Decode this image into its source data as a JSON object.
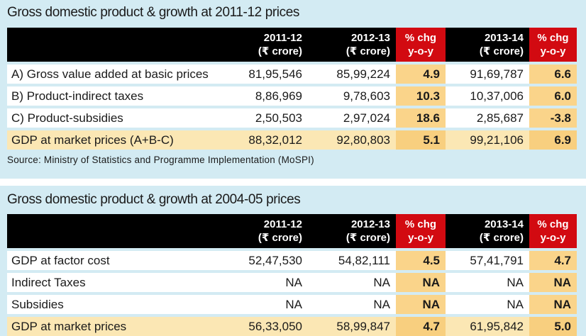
{
  "colors": {
    "background": "#d3ebf3",
    "header_black": "#000000",
    "header_red": "#d20a11",
    "pct_cell": "#fad48a",
    "total_row": "#fbe7b4"
  },
  "table1": {
    "title": "Gross domestic product & growth at 2011-12 prices",
    "headers": [
      {
        "line1": "",
        "line2": ""
      },
      {
        "line1": "2011-12",
        "line2": "(₹ crore)"
      },
      {
        "line1": "2012-13",
        "line2": "(₹ crore)"
      },
      {
        "line1": "% chg",
        "line2": "y-o-y"
      },
      {
        "line1": "2013-14",
        "line2": "(₹ crore)"
      },
      {
        "line1": "% chg",
        "line2": "y-o-y"
      }
    ],
    "rows": [
      {
        "label": "A) Gross value added at basic prices",
        "v2011_12": "81,95,546",
        "v2012_13": "85,99,224",
        "chg_2012_13": "4.9",
        "v2013_14": "91,69,787",
        "chg_2013_14": "6.6"
      },
      {
        "label": "B) Product-indirect taxes",
        "v2011_12": "8,86,969",
        "v2012_13": "9,78,603",
        "chg_2012_13": "10.3",
        "v2013_14": "10,37,006",
        "chg_2013_14": "6.0"
      },
      {
        "label": "C) Product-subsidies",
        "v2011_12": "2,50,503",
        "v2012_13": "2,97,024",
        "chg_2012_13": "18.6",
        "v2013_14": "2,85,687",
        "chg_2013_14": "-3.8"
      },
      {
        "label": "GDP at market prices (A+B-C)",
        "v2011_12": "88,32,012",
        "v2012_13": "92,80,803",
        "chg_2012_13": "5.1",
        "v2013_14": "99,21,106",
        "chg_2013_14": "6.9"
      }
    ],
    "source": "Source: Ministry of Statistics and Programme Implementation (MoSPI)"
  },
  "table2": {
    "title": "Gross domestic product & growth at 2004-05 prices",
    "headers": [
      {
        "line1": "",
        "line2": ""
      },
      {
        "line1": "2011-12",
        "line2": "(₹ crore)"
      },
      {
        "line1": "2012-13",
        "line2": "(₹ crore)"
      },
      {
        "line1": "% chg",
        "line2": "y-o-y"
      },
      {
        "line1": "2013-14",
        "line2": "(₹ crore)"
      },
      {
        "line1": "% chg",
        "line2": "y-o-y"
      }
    ],
    "rows": [
      {
        "label": "GDP at factor cost",
        "v2011_12": "52,47,530",
        "v2012_13": "54,82,111",
        "chg_2012_13": "4.5",
        "v2013_14": "57,41,791",
        "chg_2013_14": "4.7"
      },
      {
        "label": "Indirect Taxes",
        "v2011_12": "NA",
        "v2012_13": "NA",
        "chg_2012_13": "NA",
        "v2013_14": "NA",
        "chg_2013_14": "NA"
      },
      {
        "label": "Subsidies",
        "v2011_12": "NA",
        "v2012_13": "NA",
        "chg_2012_13": "NA",
        "v2013_14": "NA",
        "chg_2013_14": "NA"
      },
      {
        "label": "GDP at market prices",
        "v2011_12": "56,33,050",
        "v2012_13": "58,99,847",
        "chg_2012_13": "4.7",
        "v2013_14": "61,95,842",
        "chg_2013_14": "5.0"
      }
    ]
  }
}
